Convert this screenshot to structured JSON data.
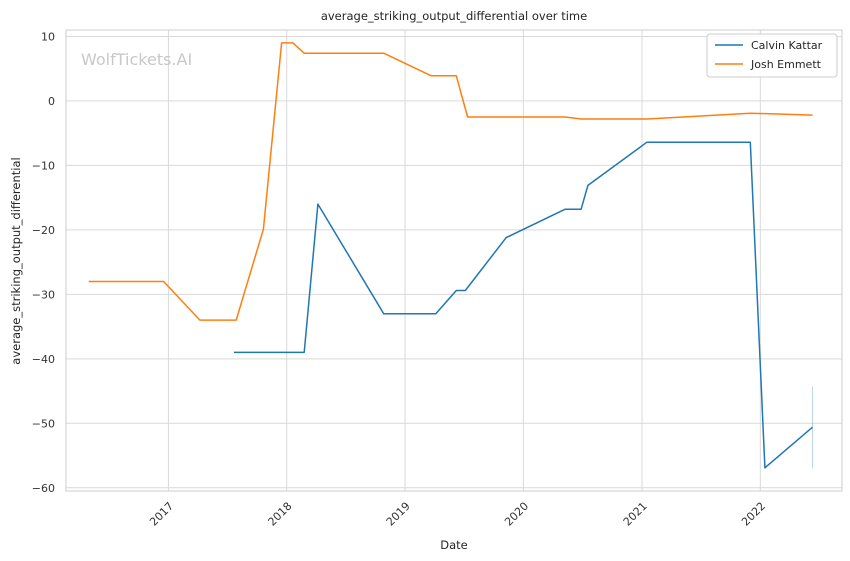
{
  "chart_data": {
    "type": "line",
    "title": "average_striking_output_differential over time",
    "xlabel": "Date",
    "ylabel": "average_striking_output_differential",
    "watermark": "WolfTickets.AI",
    "xlim": [
      "2016-02-20",
      "2022-09-10"
    ],
    "ylim": [
      -60.5,
      11
    ],
    "x_ticks": [
      "2017-01-01",
      "2018-01-01",
      "2019-01-01",
      "2020-01-01",
      "2021-01-01",
      "2022-01-01"
    ],
    "x_tick_labels": [
      "2017",
      "2018",
      "2019",
      "2020",
      "2021",
      "2022"
    ],
    "y_ticks": [
      10,
      0,
      -10,
      -20,
      -30,
      -40,
      -50,
      -60
    ],
    "y_tick_labels": [
      "10",
      "0",
      "−10",
      "−20",
      "−30",
      "−40",
      "−50",
      "−60"
    ],
    "grid": true,
    "legend_position": "top-right",
    "series": [
      {
        "name": "Calvin Kattar",
        "color": "#1f77b4",
        "points": [
          [
            "2017-07-22",
            -39
          ],
          [
            "2018-02-24",
            -39
          ],
          [
            "2018-04-07",
            -16
          ],
          [
            "2018-10-27",
            -33
          ],
          [
            "2019-04-06",
            -33
          ],
          [
            "2019-06-08",
            -29.4
          ],
          [
            "2019-07-06",
            -29.4
          ],
          [
            "2019-11-09",
            -21.2
          ],
          [
            "2020-05-09",
            -16.8
          ],
          [
            "2020-06-27",
            -16.8
          ],
          [
            "2020-07-18",
            -13.1
          ],
          [
            "2021-01-16",
            -6.4
          ],
          [
            "2021-12-01",
            -6.4
          ],
          [
            "2022-01-15",
            -56.9
          ],
          [
            "2022-06-11",
            -50.6
          ]
        ],
        "error_band": {
          "x": "2022-06-11",
          "low": -57.0,
          "high": -44.3
        }
      },
      {
        "name": "Josh Emmett",
        "color": "#ff7f0e",
        "points": [
          [
            "2016-04-30",
            -28
          ],
          [
            "2016-12-17",
            -28
          ],
          [
            "2017-04-08",
            -34
          ],
          [
            "2017-07-29",
            -34
          ],
          [
            "2017-10-21",
            -19.9
          ],
          [
            "2017-12-16",
            9
          ],
          [
            "2018-01-20",
            9
          ],
          [
            "2018-02-24",
            7.4
          ],
          [
            "2018-10-27",
            7.4
          ],
          [
            "2019-03-23",
            3.9
          ],
          [
            "2019-06-08",
            3.9
          ],
          [
            "2019-07-13",
            -2.5
          ],
          [
            "2020-05-09",
            -2.5
          ],
          [
            "2020-06-27",
            -2.8
          ],
          [
            "2021-01-16",
            -2.8
          ],
          [
            "2021-12-01",
            -1.9
          ],
          [
            "2022-06-11",
            -2.2
          ]
        ]
      }
    ]
  }
}
